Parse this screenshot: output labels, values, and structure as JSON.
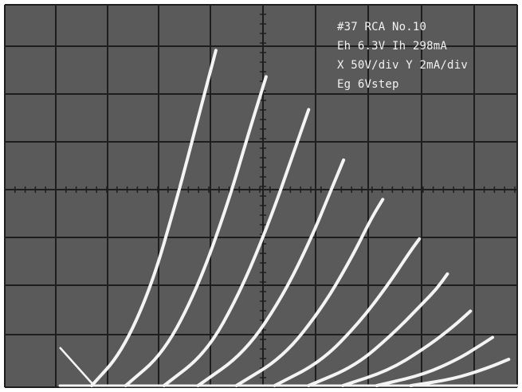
{
  "screen": {
    "background_color": "#5a5a5a",
    "grid_color": "#1e1e1e",
    "trace_color": "#f4f4f4",
    "text_color": "#f2f2f2"
  },
  "annotation": {
    "line1": "#37 RCA No.10",
    "line2": "Eh  6.3V Ih  298mA",
    "line3": "X  50V/div Y  2mA/div",
    "line4": "Eg  6Vstep"
  },
  "chart_data": {
    "type": "line",
    "title": "",
    "xlabel": "",
    "ylabel": "",
    "x_unit": "V",
    "y_unit": "mA",
    "x_scale_per_div": 50,
    "y_scale_per_div": 2,
    "grid": true,
    "xlim": [
      0,
      500
    ],
    "ylim": [
      0,
      16
    ],
    "step_description": "Eg 6V step",
    "series": [
      {
        "points": [
          [
            0,
            0
          ],
          [
            35,
            1.5
          ],
          [
            70,
            4.5
          ],
          [
            100,
            8.5
          ],
          [
            125,
            12.2
          ],
          [
            146,
            15.3
          ]
        ]
      },
      {
        "points": [
          [
            40,
            0
          ],
          [
            85,
            1.5
          ],
          [
            125,
            4.5
          ],
          [
            160,
            8.3
          ],
          [
            185,
            11.6
          ],
          [
            205,
            14.1
          ]
        ]
      },
      {
        "points": [
          [
            85,
            0
          ],
          [
            135,
            1.5
          ],
          [
            175,
            4.3
          ],
          [
            210,
            7.6
          ],
          [
            237,
            10.6
          ],
          [
            255,
            12.6
          ]
        ]
      },
      {
        "points": [
          [
            125,
            0
          ],
          [
            180,
            1.5
          ],
          [
            225,
            4.1
          ],
          [
            260,
            6.9
          ],
          [
            282,
            9.0
          ],
          [
            296,
            10.3
          ]
        ]
      },
      {
        "points": [
          [
            170,
            0
          ],
          [
            225,
            1.3
          ],
          [
            270,
            3.5
          ],
          [
            305,
            5.8
          ],
          [
            328,
            7.6
          ],
          [
            342,
            8.5
          ]
        ]
      },
      {
        "points": [
          [
            215,
            0
          ],
          [
            270,
            1.1
          ],
          [
            315,
            2.9
          ],
          [
            350,
            4.7
          ],
          [
            372,
            6.0
          ],
          [
            385,
            6.7
          ]
        ]
      },
      {
        "points": [
          [
            255,
            0
          ],
          [
            310,
            0.9
          ],
          [
            355,
            2.4
          ],
          [
            390,
            3.8
          ],
          [
            405,
            4.4
          ],
          [
            418,
            5.1
          ]
        ]
      },
      {
        "points": [
          [
            295,
            0
          ],
          [
            350,
            0.7
          ],
          [
            395,
            1.8
          ],
          [
            425,
            2.7
          ],
          [
            445,
            3.4
          ]
        ]
      },
      {
        "points": [
          [
            335,
            0
          ],
          [
            390,
            0.5
          ],
          [
            430,
            1.2
          ],
          [
            455,
            1.8
          ],
          [
            471,
            2.2
          ]
        ]
      },
      {
        "points": [
          [
            375,
            0
          ],
          [
            425,
            0.3
          ],
          [
            465,
            0.8
          ],
          [
            490,
            1.2
          ]
        ]
      }
    ]
  }
}
